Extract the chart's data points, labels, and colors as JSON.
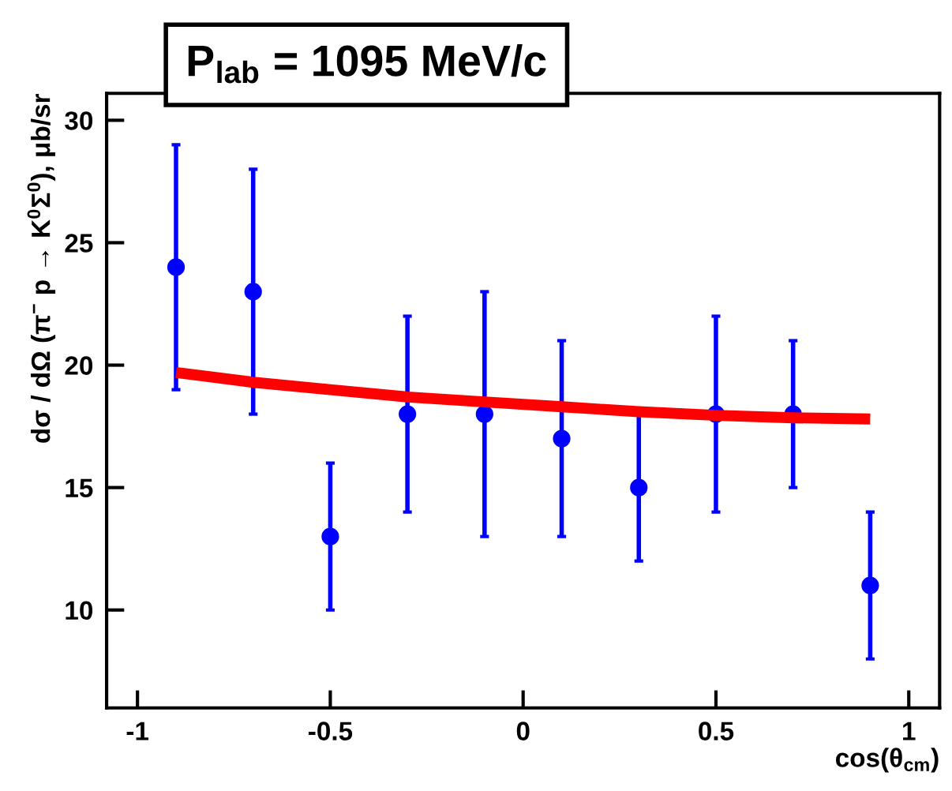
{
  "chart_data": {
    "type": "scatter",
    "title": "P$_{lab}$ = 1095 MeV/c",
    "xlabel": "cos(θ$_{cm}$)",
    "ylabel": "dσ / dΩ (π$^{−}$ p → K$^{0}$Σ$^{0}$), μb/sr",
    "xlim": [
      -1.08,
      1.08
    ],
    "ylim": [
      6,
      31.1
    ],
    "xticks": [
      {
        "value": -1,
        "label": "-1"
      },
      {
        "value": -0.5,
        "label": "-0.5"
      },
      0,
      0.5,
      1
    ],
    "yticks": [
      10,
      15,
      20,
      25,
      30
    ],
    "grid": false,
    "legend": false,
    "series": [
      {
        "marker": "circle",
        "color": "#0000ff",
        "x": [
          -0.9,
          -0.7,
          -0.5,
          -0.3,
          -0.1,
          0.1,
          0.3,
          0.5,
          0.7,
          0.9
        ],
        "values": [
          24,
          23,
          13,
          18,
          18,
          17,
          15,
          18,
          18,
          11
        ],
        "errors": [
          5,
          5,
          3,
          4,
          5,
          4,
          3,
          4,
          3,
          3
        ]
      },
      {
        "type": "line",
        "color": "#ff0000",
        "line_style": "solid",
        "x": [
          -0.9,
          -0.7,
          -0.5,
          -0.3,
          -0.1,
          0.1,
          0.3,
          0.5,
          0.7,
          0.9
        ],
        "values": [
          19.7,
          19.3,
          19.0,
          18.7,
          18.5,
          18.3,
          18.1,
          17.95,
          17.85,
          17.8
        ]
      }
    ]
  }
}
